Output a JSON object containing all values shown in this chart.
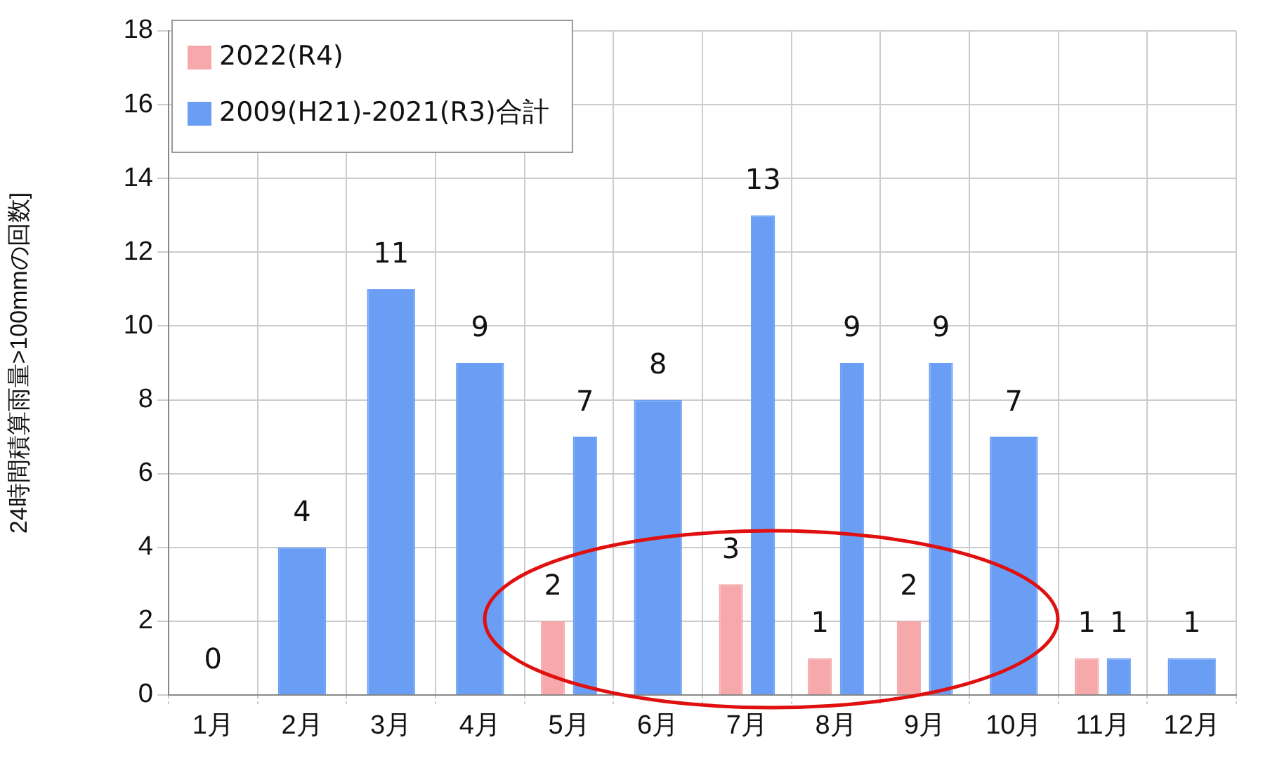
{
  "chart_data": {
    "type": "bar",
    "ylabel": "24時間積算雨量>100mmの回数]",
    "categories": [
      "1月",
      "2月",
      "3月",
      "4月",
      "5月",
      "6月",
      "7月",
      "8月",
      "9月",
      "10月",
      "11月",
      "12月"
    ],
    "series": [
      {
        "name": "2022(R4)",
        "color": "#f7a8aa",
        "values": [
          null,
          null,
          null,
          null,
          2,
          null,
          3,
          1,
          2,
          null,
          1,
          null
        ]
      },
      {
        "name": "2009(H21)-2021(R3)合計",
        "color": "#6a9ef5",
        "values": [
          0,
          4,
          11,
          9,
          7,
          8,
          13,
          9,
          9,
          7,
          1,
          1
        ]
      }
    ],
    "ylim": [
      0,
      18
    ],
    "yticks": [
      0,
      2,
      4,
      6,
      8,
      10,
      12,
      14,
      16,
      18
    ],
    "grid": true,
    "legend": "top left",
    "data_labels": true
  }
}
